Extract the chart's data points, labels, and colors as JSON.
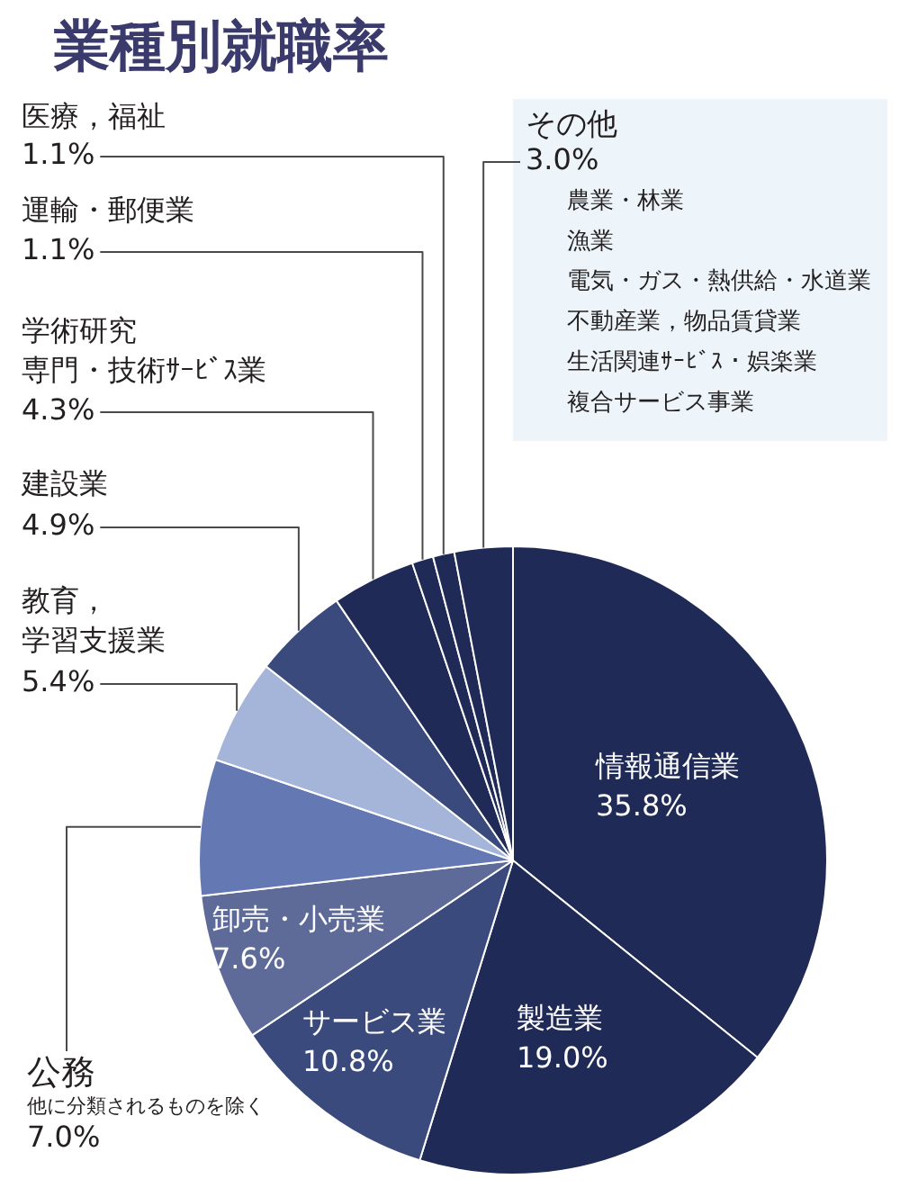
{
  "chart_data": {
    "type": "pie",
    "title": "業種別就職率",
    "categories": [
      "情報通信業",
      "製造業",
      "サービス業",
      "卸売・小売業",
      "公務他に分類されるものを除く",
      "教育，学習支援業",
      "建設業",
      "学術研究専門・技術ｻｰﾋﾞｽ業",
      "運輸・郵便業",
      "医療，福祉",
      "その他"
    ],
    "values": [
      35.8,
      19.0,
      10.8,
      7.6,
      7.0,
      5.4,
      4.9,
      4.3,
      1.1,
      1.1,
      3.0
    ],
    "value_labels": [
      "35.8%",
      "19.0%",
      "10.8%",
      "7.6%",
      "7.0%",
      "5.4%",
      "4.9%",
      "4.3%",
      "1.1%",
      "1.1%",
      "3.0%"
    ],
    "colors": [
      "#1f2a56",
      "#1f2a56",
      "#3b4a7d",
      "#5e6a98",
      "#6479b4",
      "#a4b5d9",
      "#3b4a7d",
      "#1f2a56",
      "#1f2a56",
      "#1f2a56",
      "#1f2a56"
    ],
    "annotations": [
      "農業・林業",
      "漁業",
      "電気・ガス・熱供給・水道業",
      "不動産業，物品賃貸業",
      "生活関連ｻｰﾋﾞｽ・娯楽業",
      "複合サービス事業"
    ]
  }
}
